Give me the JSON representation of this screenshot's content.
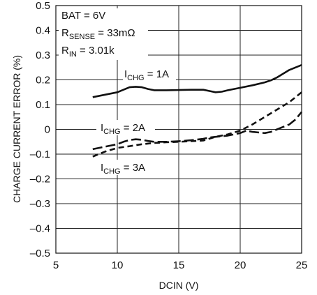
{
  "chart_data": {
    "type": "line",
    "xlabel": "DCIN (V)",
    "ylabel": "CHARGE CURRENT ERROR (%)",
    "xlim": [
      5,
      25
    ],
    "ylim": [
      -0.5,
      0.5
    ],
    "grid": true,
    "x_ticks": [
      5,
      10,
      15,
      20,
      25
    ],
    "x_tick_labels": [
      "5",
      "10",
      "15",
      "20",
      "25"
    ],
    "y_ticks": [
      -0.5,
      -0.4,
      -0.3,
      -0.2,
      -0.1,
      0,
      0.1,
      0.2,
      0.3,
      0.4,
      0.5
    ],
    "y_tick_labels": [
      "–0.5",
      "–0.4",
      "–0.3",
      "–0.2",
      "–0.1",
      "0",
      "0.1",
      "0.2",
      "0.3",
      "0.4",
      "0.5"
    ],
    "conditions": {
      "bat": "BAT = 6V",
      "rsense": {
        "main": "R",
        "sub": "SENSE",
        "rest": " = 33mΩ"
      },
      "rin": {
        "main": "R",
        "sub": "IN",
        "rest": " = 3.01k"
      }
    },
    "series": [
      {
        "name": "ICHG = 1A",
        "label": {
          "main": "I",
          "sub": "CHG",
          "rest": " = 1A"
        },
        "style": "solid",
        "x": [
          8,
          9,
          10,
          10.5,
          11,
          11.5,
          12,
          12.5,
          13,
          14,
          15,
          16,
          16.5,
          17,
          17.5,
          18,
          18.5,
          19,
          20,
          21,
          22,
          22.5,
          23,
          23.5,
          24,
          25
        ],
        "y": [
          0.13,
          0.14,
          0.15,
          0.16,
          0.17,
          0.172,
          0.17,
          0.163,
          0.158,
          0.158,
          0.159,
          0.16,
          0.16,
          0.16,
          0.155,
          0.15,
          0.152,
          0.158,
          0.168,
          0.178,
          0.19,
          0.198,
          0.21,
          0.225,
          0.24,
          0.26
        ]
      },
      {
        "name": "ICHG = 2A",
        "label": {
          "main": "I",
          "sub": "CHG",
          "rest": " = 2A"
        },
        "style": "dashed-long",
        "x": [
          8,
          9,
          10,
          10.5,
          11,
          11.5,
          12,
          12.5,
          13,
          14,
          15,
          16,
          17,
          17.5,
          18,
          19,
          20,
          20.5,
          21,
          22,
          22.5,
          23,
          24,
          24.5,
          25
        ],
        "y": [
          -0.08,
          -0.07,
          -0.06,
          -0.05,
          -0.043,
          -0.04,
          -0.042,
          -0.047,
          -0.05,
          -0.05,
          -0.048,
          -0.044,
          -0.038,
          -0.033,
          -0.03,
          -0.025,
          -0.015,
          -0.005,
          -0.01,
          -0.015,
          -0.01,
          0,
          0.02,
          0.04,
          0.07
        ]
      },
      {
        "name": "ICHG = 3A",
        "label": {
          "main": "I",
          "sub": "CHG",
          "rest": " = 3A"
        },
        "style": "dashed-short",
        "x": [
          8,
          9,
          10,
          11,
          12,
          13,
          14,
          15,
          16,
          17,
          18,
          19,
          20,
          21,
          22,
          23,
          24,
          25
        ],
        "y": [
          -0.11,
          -0.09,
          -0.075,
          -0.068,
          -0.06,
          -0.055,
          -0.052,
          -0.05,
          -0.048,
          -0.045,
          -0.03,
          -0.02,
          -0.005,
          0.02,
          0.05,
          0.08,
          0.11,
          0.15
        ]
      }
    ]
  }
}
